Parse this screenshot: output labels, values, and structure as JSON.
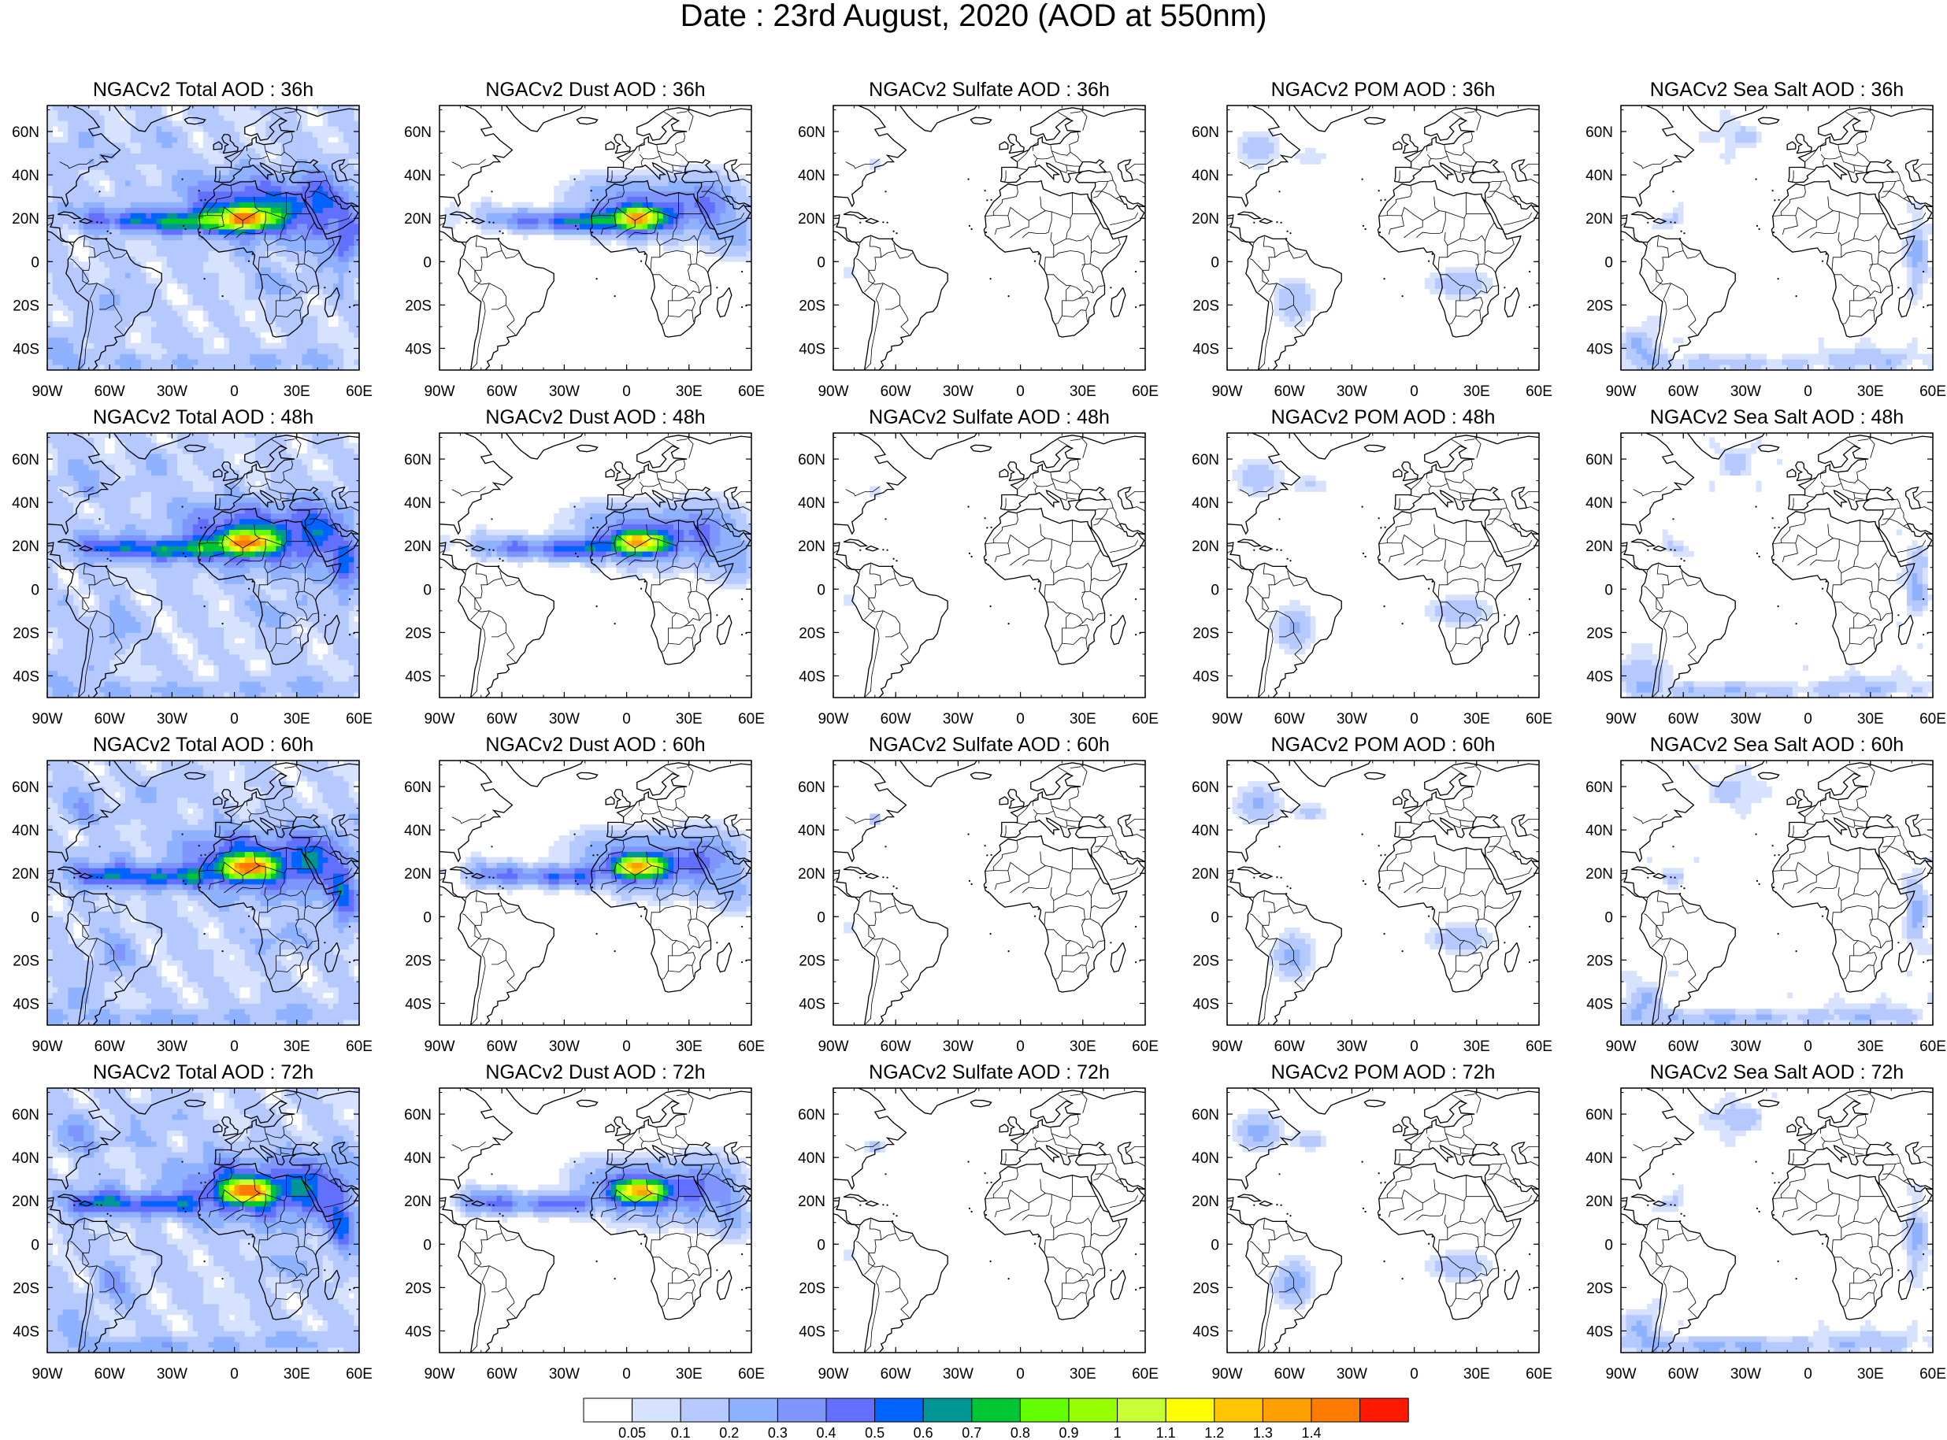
{
  "title": "Date : 23rd August, 2020 (AOD at 550nm)",
  "panels": [
    {
      "title": "NGACv2 Total AOD : 36h",
      "species": "total",
      "hour": "36h"
    },
    {
      "title": "NGACv2 Dust AOD : 36h",
      "species": "dust",
      "hour": "36h"
    },
    {
      "title": "NGACv2 Sulfate AOD : 36h",
      "species": "sulfate",
      "hour": "36h"
    },
    {
      "title": "NGACv2 POM AOD : 36h",
      "species": "pom",
      "hour": "36h"
    },
    {
      "title": "NGACv2 Sea Salt AOD : 36h",
      "species": "seasalt",
      "hour": "36h"
    },
    {
      "title": "NGACv2 Total AOD : 48h",
      "species": "total",
      "hour": "48h"
    },
    {
      "title": "NGACv2 Dust AOD : 48h",
      "species": "dust",
      "hour": "48h"
    },
    {
      "title": "NGACv2 Sulfate AOD : 48h",
      "species": "sulfate",
      "hour": "48h"
    },
    {
      "title": "NGACv2 POM AOD : 48h",
      "species": "pom",
      "hour": "48h"
    },
    {
      "title": "NGACv2 Sea Salt AOD : 48h",
      "species": "seasalt",
      "hour": "48h"
    },
    {
      "title": "NGACv2 Total AOD : 60h",
      "species": "total",
      "hour": "60h"
    },
    {
      "title": "NGACv2 Dust AOD : 60h",
      "species": "dust",
      "hour": "60h"
    },
    {
      "title": "NGACv2 Sulfate AOD : 60h",
      "species": "sulfate",
      "hour": "60h"
    },
    {
      "title": "NGACv2 POM AOD : 60h",
      "species": "pom",
      "hour": "60h"
    },
    {
      "title": "NGACv2 Sea Salt AOD : 60h",
      "species": "seasalt",
      "hour": "60h"
    },
    {
      "title": "NGACv2 Total AOD : 72h",
      "species": "total",
      "hour": "72h"
    },
    {
      "title": "NGACv2 Dust AOD : 72h",
      "species": "dust",
      "hour": "72h"
    },
    {
      "title": "NGACv2 Sulfate AOD : 72h",
      "species": "sulfate",
      "hour": "72h"
    },
    {
      "title": "NGACv2 POM AOD : 72h",
      "species": "pom",
      "hour": "72h"
    },
    {
      "title": "NGACv2 Sea Salt  AOD : 72h",
      "species": "seasalt",
      "hour": "72h"
    }
  ],
  "map": {
    "lon_range": [
      -90,
      60
    ],
    "lat_range": [
      -50,
      72
    ],
    "x_ticks": [
      {
        "lon": -90,
        "label": "90W"
      },
      {
        "lon": -60,
        "label": "60W"
      },
      {
        "lon": -30,
        "label": "30W"
      },
      {
        "lon": 0,
        "label": "0"
      },
      {
        "lon": 30,
        "label": "30E"
      },
      {
        "lon": 60,
        "label": "60E"
      }
    ],
    "y_ticks": [
      {
        "lat": 60,
        "label": "60N"
      },
      {
        "lat": 40,
        "label": "40N"
      },
      {
        "lat": 20,
        "label": "20N"
      },
      {
        "lat": 0,
        "label": "0"
      },
      {
        "lat": -20,
        "label": "20S"
      },
      {
        "lat": -40,
        "label": "40S"
      }
    ]
  },
  "colorbar": {
    "colors": [
      "#ffffff",
      "#d6e2ff",
      "#b5c9ff",
      "#8eb2ff",
      "#7f96ff",
      "#6370ff",
      "#0063ff",
      "#009696",
      "#00c633",
      "#63ff00",
      "#96ff00",
      "#c6ff33",
      "#ffff00",
      "#ffc600",
      "#ffa000",
      "#ff7c00",
      "#ff1900"
    ],
    "labels": [
      "0.05",
      "0.1",
      "0.2",
      "0.3",
      "0.4",
      "0.5",
      "0.6",
      "0.7",
      "0.8",
      "0.9",
      "1",
      "1.1",
      "1.2",
      "1.3",
      "1.4"
    ]
  }
}
